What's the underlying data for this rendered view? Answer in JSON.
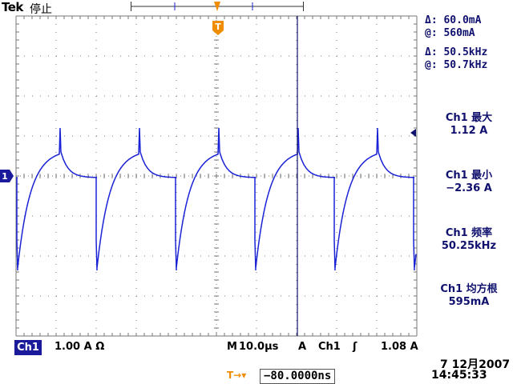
{
  "header": {
    "brand": "Tek",
    "run_status": "停止"
  },
  "cursors": {
    "delta_label": "Δ:",
    "at_label": "@:",
    "vertical_delta": "60.0mA",
    "vertical_at": "560mA",
    "horizontal_delta": "50.5kHz",
    "horizontal_at": "50.7kHz"
  },
  "measurements": [
    {
      "label": "Ch1 最大",
      "value": "1.12 A"
    },
    {
      "label": "Ch1 最小",
      "value": "−2.36 A"
    },
    {
      "label": "Ch1 频率",
      "value": "50.25kHz"
    },
    {
      "label": "Ch1 均方根",
      "value": "595mA"
    }
  ],
  "markers": {
    "trigger": "T",
    "channel": "1"
  },
  "bottom": {
    "channel": "Ch1",
    "scale": "1.00 A Ω",
    "timebase_prefix": "M",
    "timebase": "10.0μs",
    "trigger_prefix": "A",
    "trigger_channel": "Ch1",
    "trigger_slope": "ʃ",
    "trigger_level": "1.08 A"
  },
  "trigger_offset": {
    "icon": "T→▾",
    "value": "−80.0000ns"
  },
  "timestamp": {
    "date": "7 12月2007",
    "time": "14:45:33"
  },
  "colors": {
    "trace": "#1a22d6",
    "grid": "#777777",
    "trigger_marker": "#f08c00",
    "channel_marker": "#1a1a9a"
  }
}
